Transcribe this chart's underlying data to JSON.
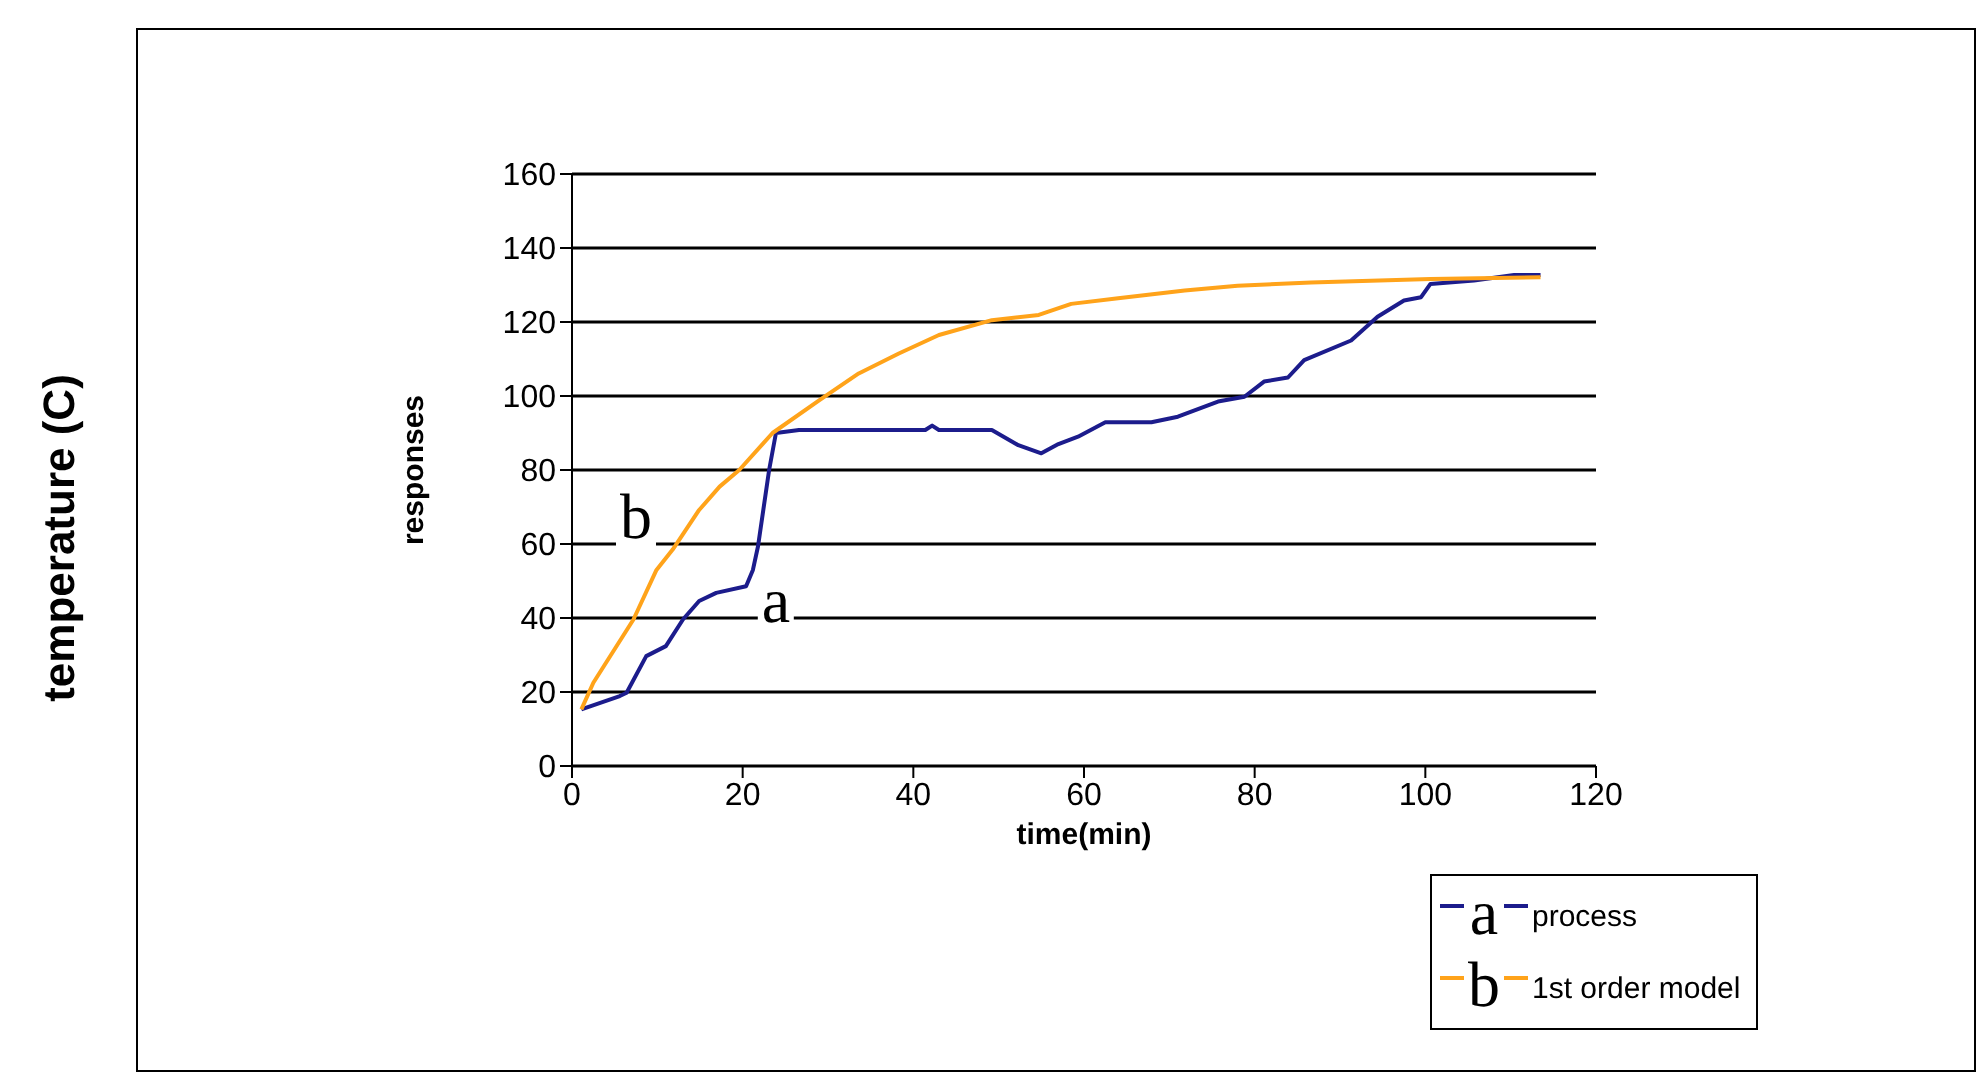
{
  "chart_data": {
    "type": "line",
    "xlabel": "time(min)",
    "ylabel": "responses",
    "annotations": [
      "a",
      "b",
      "temperature (C)"
    ],
    "series": [
      {
        "name": "process",
        "color": "#1c1c8c",
        "x": [
          1.1,
          5.6,
          6.4,
          8.7,
          11,
          13,
          14.9,
          16.9,
          20.4,
          21.2,
          21.8,
          23.1,
          23.9,
          26.6,
          41.4,
          42.2,
          43,
          49.2,
          52.3,
          55,
          57,
          59.3,
          62.5,
          67.9,
          71,
          75.7,
          78.8,
          81.1,
          83.9,
          85.8,
          91.3,
          94.4,
          97.5,
          99.5,
          100.6,
          105.7,
          110.4,
          113.5
        ],
        "values": [
          15.3,
          18.9,
          19.8,
          29.7,
          32.4,
          39.6,
          44.6,
          46.8,
          48.6,
          53,
          59.4,
          80,
          90,
          90.8,
          90.8,
          92,
          90.8,
          90.8,
          86.7,
          84.5,
          87,
          89,
          92.9,
          92.9,
          94.4,
          98.5,
          99.8,
          103.9,
          105,
          109.7,
          115,
          121.4,
          125.8,
          126.7,
          130.3,
          131.2,
          132.7,
          132.7
        ]
      },
      {
        "name": "1st order model",
        "color": "#ffa31a",
        "x": [
          1.1,
          2.5,
          7.2,
          9.9,
          11.8,
          14.9,
          17.3,
          19.6,
          23.5,
          29,
          33.6,
          38.3,
          43,
          49.2,
          54.7,
          58.5,
          64,
          71.8,
          78,
          86.6,
          100.6,
          113.5
        ],
        "values": [
          15.3,
          22.5,
          39.6,
          53,
          58.5,
          69.2,
          75.5,
          80,
          90,
          98.9,
          106.1,
          111.5,
          116.5,
          120.5,
          121.9,
          124.9,
          126.4,
          128.5,
          129.8,
          130.7,
          131.6,
          132.1
        ]
      }
    ],
    "xlim": [
      0,
      120
    ],
    "xticks": [
      0,
      20,
      40,
      60,
      80,
      100,
      120
    ],
    "ylim": [
      0,
      160
    ],
    "yticks": [
      0,
      20,
      40,
      60,
      80,
      100,
      120,
      140,
      160
    ],
    "grid": "y",
    "legend": "bottom right",
    "marker": "none",
    "line_style": "solid"
  }
}
